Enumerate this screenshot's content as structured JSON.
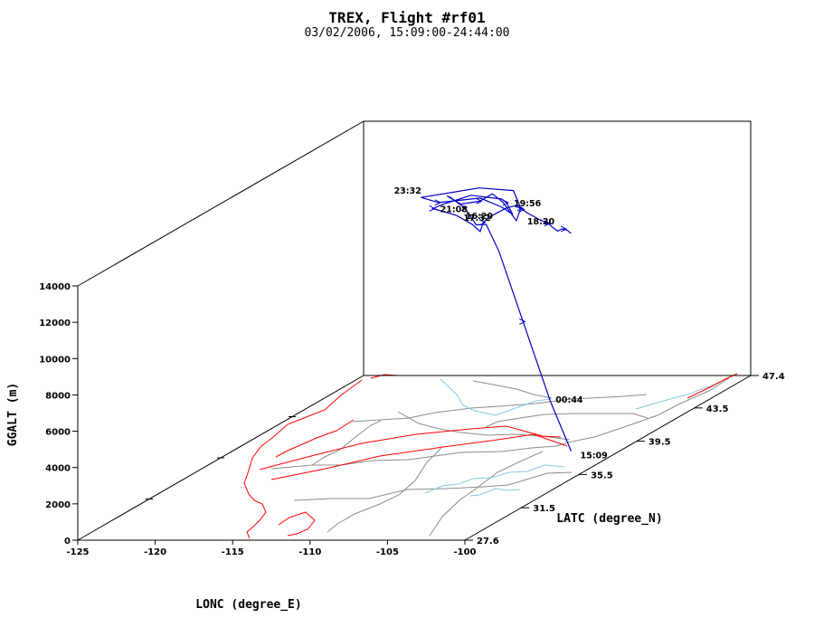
{
  "chart_data": {
    "type": "line",
    "title": "TREX, Flight #rf01",
    "subtitle": "03/02/2006, 15:09:00-24:44:00",
    "xlabel": "LONC (degree_E)",
    "ylabel": "LATC (degree_N)",
    "zlabel": "GGALT (m)",
    "xlim": [
      -125,
      -100
    ],
    "ylim": [
      27.6,
      47.4
    ],
    "zlim": [
      0,
      14000
    ],
    "x_ticks": [
      "-125",
      "-120",
      "-115",
      "-110",
      "-105",
      "-100"
    ],
    "y_ticks": [
      "27.6",
      "31.5",
      "35.5",
      "39.5",
      "43.5",
      "47.4"
    ],
    "z_ticks": [
      "0",
      "2000",
      "4000",
      "6000",
      "8000",
      "10000",
      "12000",
      "14000"
    ],
    "annotations": [
      "15:09",
      "16:20",
      "17:32",
      "18:20",
      "19:56",
      "21:08",
      "23:32",
      "00:44"
    ],
    "colors": {
      "flight_track": "#0000c8",
      "coastline": "#ff0000",
      "state_borders": "#8c8c8c",
      "rivers": "#87c8e6",
      "frame": "#000000"
    },
    "grid": false,
    "series": [
      {
        "name": "",
        "lon": [
          -101.9,
          -104.0,
          -106.5,
          -108.8,
          -110.0,
          -111.2,
          -112.4,
          -113.7,
          -114.3,
          -113.5,
          -112.0,
          -111.0,
          -110.6,
          -110.1,
          -110.0,
          -110.2,
          -112.5,
          -115.6,
          -114.1,
          -111.5,
          -110.1,
          -109.4,
          -109.9,
          -110.2,
          -112.0,
          -113.6,
          -114.0,
          -112.1,
          -110.9,
          -110.2,
          -110.0,
          -109.6,
          -108.5,
          -107.8,
          -107.1,
          -106.6,
          -106.0,
          -105.4,
          -104.7,
          -104.1,
          -103.6,
          -103.2,
          -102.8,
          -102.4,
          -102.1,
          -101.9
        ],
        "lat": [
          37.0,
          37.8,
          38.6,
          39.4,
          39.8,
          40.4,
          40.9,
          41.3,
          41.7,
          41.8,
          41.5,
          41.3,
          41.6,
          42.0,
          42.2,
          41.9,
          42.0,
          41.3,
          40.9,
          41.0,
          41.0,
          41.0,
          41.1,
          41.1,
          40.9,
          40.7,
          40.4,
          40.0,
          39.8,
          39.6,
          39.6,
          39.6,
          39.6,
          39.4,
          39.2,
          39.0,
          38.8,
          38.6,
          38.4,
          38.1,
          37.9,
          37.7,
          37.5,
          37.3,
          37.1,
          37.0
        ],
        "alt": [
          600,
          3000,
          7000,
          10500,
          11800,
          11500,
          12200,
          12600,
          12500,
          12000,
          12300,
          12800,
          12200,
          11000,
          11600,
          12700,
          12800,
          12600,
          12500,
          12700,
          12200,
          11800,
          12400,
          12600,
          12900,
          12500,
          12400,
          12200,
          11800,
          11500,
          12000,
          12300,
          12800,
          13000,
          12900,
          12800,
          12700,
          12600,
          12500,
          12400,
          12300,
          12500,
          12600,
          12600,
          12600,
          12600
        ]
      }
    ]
  }
}
